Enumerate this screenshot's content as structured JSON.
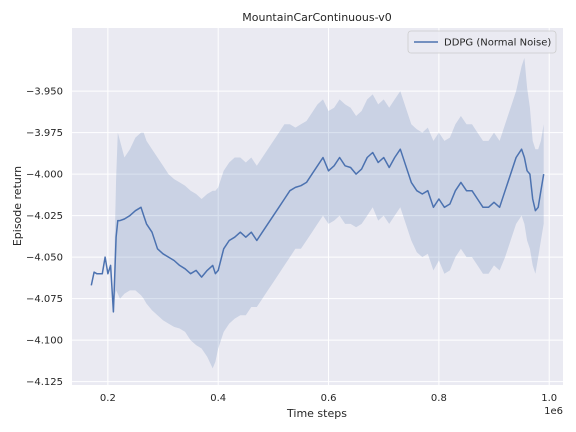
{
  "chart_data": {
    "type": "line",
    "title": "MountainCarContinuous-v0",
    "xlabel": "Time steps",
    "ylabel": "Episode return",
    "x_offset_label": "1e6",
    "xlim": [
      0.135,
      1.025
    ],
    "ylim": [
      -4.127,
      -3.912
    ],
    "xticks": [
      0.2,
      0.4,
      0.6,
      0.8,
      1.0
    ],
    "xtick_labels": [
      "0.2",
      "0.4",
      "0.6",
      "0.8",
      "1.0"
    ],
    "yticks": [
      -3.95,
      -3.975,
      -4.0,
      -4.025,
      -4.05,
      -4.075,
      -4.1,
      -4.125
    ],
    "ytick_labels": [
      "−3.950",
      "−3.975",
      "−4.000",
      "−4.025",
      "−4.050",
      "−4.075",
      "−4.100",
      "−4.125"
    ],
    "grid": true,
    "legend_position": "top-right",
    "colors": {
      "background": "#eaeaf2",
      "grid": "#ffffff",
      "line": "#4c72b0",
      "band": "#4c72b0"
    },
    "series": [
      {
        "name": "DDPG (Normal Noise)",
        "x": [
          0.17,
          0.175,
          0.18,
          0.19,
          0.195,
          0.2,
          0.205,
          0.21,
          0.212,
          0.215,
          0.218,
          0.222,
          0.23,
          0.24,
          0.25,
          0.26,
          0.265,
          0.27,
          0.28,
          0.29,
          0.3,
          0.31,
          0.32,
          0.33,
          0.34,
          0.35,
          0.36,
          0.37,
          0.38,
          0.39,
          0.395,
          0.4,
          0.41,
          0.42,
          0.43,
          0.44,
          0.45,
          0.46,
          0.47,
          0.48,
          0.49,
          0.5,
          0.51,
          0.52,
          0.53,
          0.54,
          0.55,
          0.56,
          0.57,
          0.58,
          0.59,
          0.6,
          0.61,
          0.62,
          0.63,
          0.64,
          0.65,
          0.66,
          0.67,
          0.68,
          0.69,
          0.7,
          0.71,
          0.72,
          0.73,
          0.74,
          0.75,
          0.76,
          0.77,
          0.78,
          0.79,
          0.8,
          0.81,
          0.82,
          0.83,
          0.84,
          0.85,
          0.86,
          0.87,
          0.88,
          0.89,
          0.9,
          0.91,
          0.92,
          0.93,
          0.94,
          0.95,
          0.955,
          0.96,
          0.965,
          0.97,
          0.975,
          0.98,
          0.985,
          0.99
        ],
        "y": [
          -4.067,
          -4.059,
          -4.06,
          -4.06,
          -4.05,
          -4.06,
          -4.055,
          -4.083,
          -4.065,
          -4.038,
          -4.028,
          -4.028,
          -4.027,
          -4.025,
          -4.022,
          -4.02,
          -4.025,
          -4.03,
          -4.035,
          -4.045,
          -4.048,
          -4.05,
          -4.052,
          -4.055,
          -4.057,
          -4.06,
          -4.058,
          -4.062,
          -4.058,
          -4.055,
          -4.06,
          -4.058,
          -4.045,
          -4.04,
          -4.038,
          -4.035,
          -4.038,
          -4.035,
          -4.04,
          -4.035,
          -4.03,
          -4.025,
          -4.02,
          -4.015,
          -4.01,
          -4.008,
          -4.007,
          -4.005,
          -4.0,
          -3.995,
          -3.99,
          -3.998,
          -3.995,
          -3.99,
          -3.995,
          -3.996,
          -4.0,
          -3.997,
          -3.99,
          -3.987,
          -3.993,
          -3.99,
          -3.996,
          -3.99,
          -3.985,
          -3.995,
          -4.005,
          -4.01,
          -4.012,
          -4.01,
          -4.02,
          -4.015,
          -4.02,
          -4.018,
          -4.01,
          -4.005,
          -4.01,
          -4.01,
          -4.015,
          -4.02,
          -4.02,
          -4.017,
          -4.02,
          -4.01,
          -4.0,
          -3.99,
          -3.985,
          -3.99,
          -3.998,
          -4.0,
          -4.015,
          -4.022,
          -4.02,
          -4.01,
          -4.0
        ],
        "lower": [
          -4.067,
          -4.059,
          -4.06,
          -4.06,
          -4.05,
          -4.06,
          -4.055,
          -4.083,
          -4.075,
          -4.07,
          -4.072,
          -4.075,
          -4.072,
          -4.07,
          -4.07,
          -4.073,
          -4.075,
          -4.078,
          -4.082,
          -4.085,
          -4.088,
          -4.09,
          -4.092,
          -4.093,
          -4.095,
          -4.1,
          -4.103,
          -4.105,
          -4.11,
          -4.117,
          -4.113,
          -4.105,
          -4.095,
          -4.09,
          -4.087,
          -4.085,
          -4.085,
          -4.08,
          -4.08,
          -4.075,
          -4.07,
          -4.065,
          -4.06,
          -4.055,
          -4.05,
          -4.045,
          -4.045,
          -4.04,
          -4.035,
          -4.03,
          -4.025,
          -4.03,
          -4.028,
          -4.025,
          -4.03,
          -4.03,
          -4.032,
          -4.03,
          -4.025,
          -4.02,
          -4.028,
          -4.025,
          -4.03,
          -4.025,
          -4.02,
          -4.03,
          -4.04,
          -4.047,
          -4.05,
          -4.048,
          -4.058,
          -4.052,
          -4.06,
          -4.058,
          -4.05,
          -4.045,
          -4.05,
          -4.05,
          -4.055,
          -4.06,
          -4.06,
          -4.055,
          -4.058,
          -4.05,
          -4.04,
          -4.03,
          -4.025,
          -4.03,
          -4.04,
          -4.045,
          -4.055,
          -4.06,
          -4.05,
          -4.04,
          -4.03
        ],
        "upper": [
          -4.067,
          -4.059,
          -4.06,
          -4.06,
          -4.05,
          -4.06,
          -4.055,
          -4.083,
          -4.045,
          -4.003,
          -3.975,
          -3.98,
          -3.99,
          -3.985,
          -3.978,
          -3.975,
          -3.975,
          -3.98,
          -3.985,
          -3.99,
          -3.995,
          -4.0,
          -4.003,
          -4.005,
          -4.007,
          -4.01,
          -4.012,
          -4.015,
          -4.012,
          -4.01,
          -4.01,
          -4.008,
          -3.998,
          -3.993,
          -3.99,
          -3.99,
          -3.993,
          -3.99,
          -3.995,
          -3.99,
          -3.985,
          -3.98,
          -3.975,
          -3.97,
          -3.97,
          -3.972,
          -3.97,
          -3.968,
          -3.963,
          -3.958,
          -3.955,
          -3.962,
          -3.96,
          -3.955,
          -3.958,
          -3.96,
          -3.965,
          -3.962,
          -3.955,
          -3.952,
          -3.958,
          -3.955,
          -3.96,
          -3.955,
          -3.95,
          -3.96,
          -3.97,
          -3.973,
          -3.975,
          -3.972,
          -3.98,
          -3.975,
          -3.98,
          -3.978,
          -3.97,
          -3.965,
          -3.97,
          -3.97,
          -3.975,
          -3.98,
          -3.98,
          -3.975,
          -3.98,
          -3.97,
          -3.96,
          -3.95,
          -3.935,
          -3.93,
          -3.948,
          -3.96,
          -3.98,
          -3.985,
          -3.985,
          -3.98,
          -3.97
        ]
      }
    ]
  }
}
